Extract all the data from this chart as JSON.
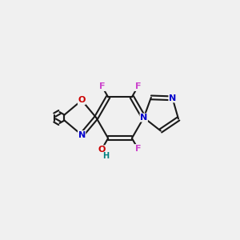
{
  "bg_color": "#f0f0f0",
  "bond_color": "#1a1a1a",
  "bond_width": 1.5,
  "atom_colors": {
    "F": "#cc44cc",
    "O": "#cc0000",
    "N": "#0000cc",
    "H": "#008080",
    "C": "#1a1a1a"
  },
  "figure_size": [
    3.0,
    3.0
  ],
  "dpi": 100
}
